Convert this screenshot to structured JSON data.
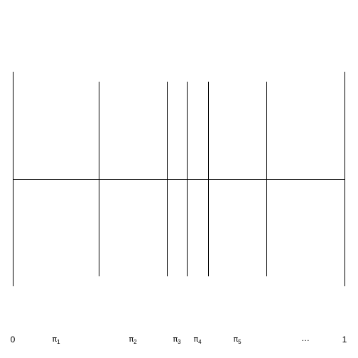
{
  "diagram": {
    "type": "stick-breaking-interval",
    "labels": {
      "start": "0",
      "end": "1",
      "ellipsis": "…",
      "breaks": [
        {
          "symbol": "π",
          "subscript": "1"
        },
        {
          "symbol": "π",
          "subscript": "2"
        },
        {
          "symbol": "π",
          "subscript": "3"
        },
        {
          "symbol": "π",
          "subscript": "4"
        },
        {
          "symbol": "π",
          "subscript": "5"
        }
      ]
    }
  }
}
